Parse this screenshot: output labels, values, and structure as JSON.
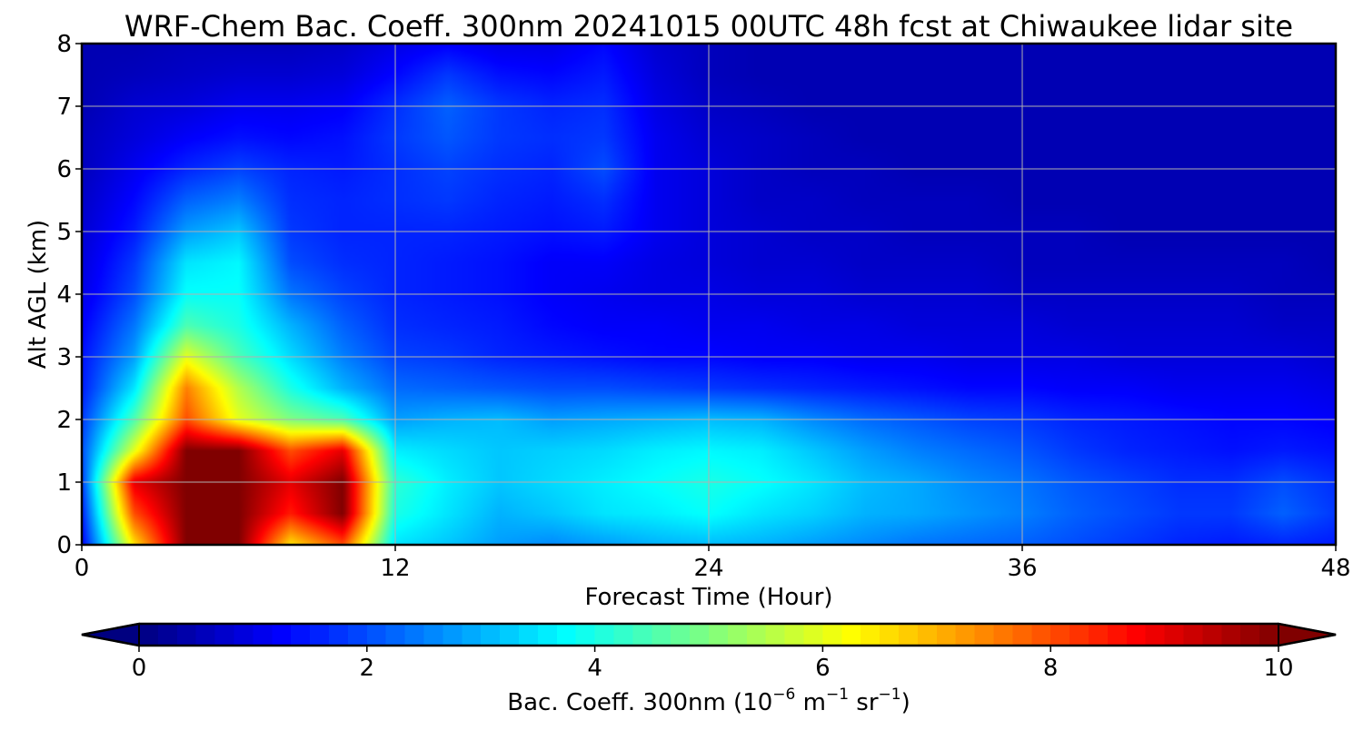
{
  "chart_data": {
    "type": "heatmap",
    "title": "WRF-Chem Bac. Coeff. 300nm  20241015 00UTC 48h fcst at Chiwaukee lidar site",
    "xlabel": "Forecast Time (Hour)",
    "ylabel": "Alt AGL (km)",
    "xlim": [
      0,
      48
    ],
    "ylim": [
      0,
      8
    ],
    "x_ticks": [
      "0",
      "12",
      "24",
      "36",
      "48"
    ],
    "x_tick_values": [
      0,
      12,
      24,
      36,
      48
    ],
    "y_ticks": [
      "0",
      "1",
      "2",
      "3",
      "4",
      "5",
      "6",
      "7",
      "8"
    ],
    "y_tick_values": [
      0,
      1,
      2,
      3,
      4,
      5,
      6,
      7,
      8
    ],
    "grid": true,
    "colormap": "jet",
    "colorbar": {
      "label_main": "Bac. Coeff. 300nm  (10",
      "label_exp1": "−6",
      "label_mid": " m",
      "label_exp2": "−1",
      "label_mid2": " sr",
      "label_exp3": "−1",
      "label_end": ")",
      "ticks": [
        "0",
        "2",
        "4",
        "6",
        "8",
        "10"
      ],
      "tick_values": [
        0,
        2,
        4,
        6,
        8,
        10
      ],
      "range": [
        0,
        10
      ],
      "extend": "both"
    },
    "x_hours": [
      0,
      2,
      4,
      6,
      8,
      10,
      12,
      14,
      16,
      18,
      20,
      22,
      24,
      26,
      28,
      30,
      32,
      34,
      36,
      38,
      40,
      42,
      44,
      46,
      48
    ],
    "y_km": [
      0,
      0.5,
      1,
      1.5,
      2,
      2.5,
      3,
      3.5,
      4,
      4.5,
      5,
      5.5,
      6,
      6.5,
      7,
      7.5,
      8
    ],
    "values": [
      [
        1.2,
        6.5,
        10,
        10,
        6.5,
        8,
        3.5,
        3.2,
        2.8,
        2.6,
        2.8,
        3,
        3.1,
        3,
        2.8,
        2.6,
        2.4,
        2.3,
        2.2,
        2,
        1.8,
        1.6,
        1.5,
        1.6,
        1.5
      ],
      [
        1.5,
        8,
        10,
        10,
        8.5,
        10,
        4,
        3.5,
        3,
        3.2,
        3.5,
        3.6,
        3.8,
        3.5,
        3.3,
        3,
        2.9,
        2.7,
        2.5,
        2.2,
        2,
        1.8,
        1.8,
        2.2,
        1.8
      ],
      [
        1.8,
        9,
        10,
        10,
        9,
        10,
        4.2,
        3.6,
        3.2,
        3.4,
        3.6,
        3.8,
        4,
        3.8,
        3.5,
        3.1,
        2.9,
        2.6,
        2.4,
        2.1,
        1.9,
        1.7,
        1.7,
        2,
        1.7
      ],
      [
        2,
        6,
        10,
        10,
        8,
        9,
        3.6,
        3.4,
        3.2,
        3.3,
        3.4,
        3.6,
        3.7,
        3.6,
        3.2,
        2.8,
        2.5,
        2.3,
        2.1,
        1.8,
        1.6,
        1.5,
        1.4,
        1.5,
        1.4
      ],
      [
        1.8,
        4.5,
        8,
        6,
        5,
        4.5,
        2.8,
        3,
        3.1,
        2.8,
        2.9,
        3,
        3.1,
        3,
        2.6,
        2.3,
        2.1,
        1.9,
        1.8,
        1.6,
        1.5,
        1.4,
        1.3,
        1.3,
        1.2
      ],
      [
        1.5,
        3.5,
        7.5,
        5.5,
        4,
        3,
        2.3,
        2.2,
        2.1,
        2,
        2,
        1.9,
        1.8,
        1.7,
        1.6,
        1.5,
        1.4,
        1.3,
        1.3,
        1.2,
        1.2,
        1.1,
        1.1,
        1.1,
        1
      ],
      [
        1.4,
        2.8,
        6,
        4.5,
        3.4,
        2.5,
        1.9,
        1.8,
        1.6,
        1.5,
        1.4,
        1.3,
        1.3,
        1.2,
        1.2,
        1.1,
        1.1,
        1,
        1,
        1,
        0.9,
        0.9,
        0.9,
        0.9,
        0.8
      ],
      [
        1.2,
        2.4,
        4.5,
        4,
        3,
        2.2,
        1.7,
        1.6,
        1.5,
        1.3,
        1.2,
        1.2,
        1.1,
        1.1,
        1,
        1,
        0.9,
        0.9,
        0.9,
        0.8,
        0.8,
        0.8,
        0.8,
        0.7,
        0.7
      ],
      [
        1,
        2,
        3.8,
        3.8,
        2.4,
        1.9,
        1.6,
        1.5,
        1.4,
        1.2,
        1.1,
        1,
        1,
        0.9,
        0.9,
        0.8,
        0.8,
        0.8,
        0.7,
        0.7,
        0.7,
        0.7,
        0.7,
        0.6,
        0.6
      ],
      [
        0.9,
        1.8,
        3.5,
        3.7,
        2,
        1.7,
        1.6,
        1.5,
        1.4,
        1.2,
        1.2,
        1,
        0.9,
        0.8,
        0.8,
        0.7,
        0.7,
        0.7,
        0.6,
        0.6,
        0.6,
        0.6,
        0.6,
        0.6,
        0.5
      ],
      [
        0.8,
        1.5,
        2.8,
        3.2,
        1.8,
        1.6,
        1.6,
        1.6,
        1.5,
        1.4,
        1.5,
        1.1,
        0.9,
        0.8,
        0.7,
        0.7,
        0.6,
        0.6,
        0.6,
        0.6,
        0.5,
        0.5,
        0.5,
        0.5,
        0.5
      ],
      [
        0.7,
        1.3,
        2.2,
        2.5,
        1.7,
        1.6,
        1.7,
        1.8,
        1.6,
        1.5,
        1.7,
        1.1,
        0.9,
        0.7,
        0.7,
        0.6,
        0.6,
        0.6,
        0.5,
        0.5,
        0.5,
        0.5,
        0.5,
        0.5,
        0.5
      ],
      [
        0.6,
        1.1,
        1.6,
        1.9,
        1.6,
        1.5,
        1.7,
        1.9,
        1.7,
        1.6,
        2,
        1.1,
        0.9,
        0.7,
        0.6,
        0.6,
        0.5,
        0.5,
        0.5,
        0.5,
        0.5,
        0.5,
        0.5,
        0.5,
        0.5
      ],
      [
        0.6,
        0.9,
        1.2,
        1.4,
        1.3,
        1.4,
        1.8,
        2.1,
        1.8,
        1.7,
        1.8,
        1.1,
        0.8,
        0.7,
        0.6,
        0.5,
        0.5,
        0.5,
        0.5,
        0.5,
        0.5,
        0.5,
        0.5,
        0.5,
        0.5
      ],
      [
        0.5,
        0.8,
        0.9,
        1.1,
        1.1,
        1.2,
        1.7,
        2.2,
        1.8,
        1.6,
        1.7,
        1,
        0.7,
        0.6,
        0.5,
        0.5,
        0.5,
        0.5,
        0.5,
        0.5,
        0.5,
        0.5,
        0.5,
        0.5,
        0.5
      ],
      [
        0.5,
        0.6,
        0.7,
        0.8,
        0.8,
        0.9,
        1.3,
        1.8,
        1.4,
        1.3,
        1.5,
        0.9,
        0.6,
        0.5,
        0.5,
        0.5,
        0.5,
        0.5,
        0.5,
        0.5,
        0.5,
        0.5,
        0.5,
        0.5,
        0.5
      ],
      [
        0.5,
        0.5,
        0.6,
        0.6,
        0.6,
        0.7,
        1,
        1.2,
        1,
        1,
        1.3,
        0.8,
        0.6,
        0.5,
        0.5,
        0.5,
        0.5,
        0.5,
        0.5,
        0.5,
        0.5,
        0.5,
        0.5,
        0.5,
        0.5
      ]
    ]
  }
}
